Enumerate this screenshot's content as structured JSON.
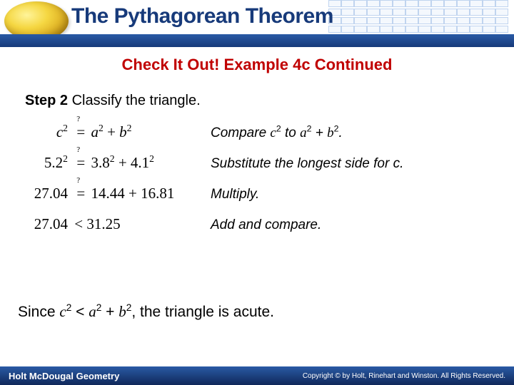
{
  "header": {
    "title": "The Pythagorean Theorem",
    "subtitle": "Check It Out! Example 4c Continued"
  },
  "step": {
    "label": "Step 2",
    "instruction": "Classify the triangle."
  },
  "rows": [
    {
      "lhs_html": "<span class='ivar'>c</span><sup>2</sup>",
      "qeq": true,
      "rhs_html": "<span class='ivar'>a</span><sup>2</sup> + <span class='ivar'>b</span><sup>2</sup>",
      "note_html": "Compare <span class='ivar'>c</span><sup>2</sup> to <span class='ivar'>a</span><sup>2</sup> + <span class='ivar'>b</span><sup>2</sup>."
    },
    {
      "lhs_html": "5.2<sup>2</sup>",
      "qeq": true,
      "rhs_html": "3.8<sup>2</sup> + 4.1<sup>2</sup>",
      "note_html": "Substitute the longest side for c."
    },
    {
      "lhs_html": "27.04",
      "qeq": true,
      "rhs_html": "14.44 + 16.81",
      "note_html": "Multiply."
    },
    {
      "lhs_html": "27.04",
      "op": "<",
      "rhs_html": "31.25",
      "note_html": "Add and compare."
    }
  ],
  "conclusion_html": "Since <span class='ivar'>c</span><sup>2</sup> &lt; <span class='ivar'>a</span><sup>2</sup> + <span class='ivar'>b</span><sup>2</sup>, the triangle is acute.",
  "footer": {
    "publisher": "Holt McDougal Geometry",
    "copyright": "Copyright © by Holt, Rinehart and Winston. All Rights Reserved."
  },
  "colors": {
    "title_color": "#173a7a",
    "subtitle_color": "#c00000",
    "bar_gradient_top": "#2a5aa5",
    "bar_gradient_bottom": "#173a7a"
  }
}
